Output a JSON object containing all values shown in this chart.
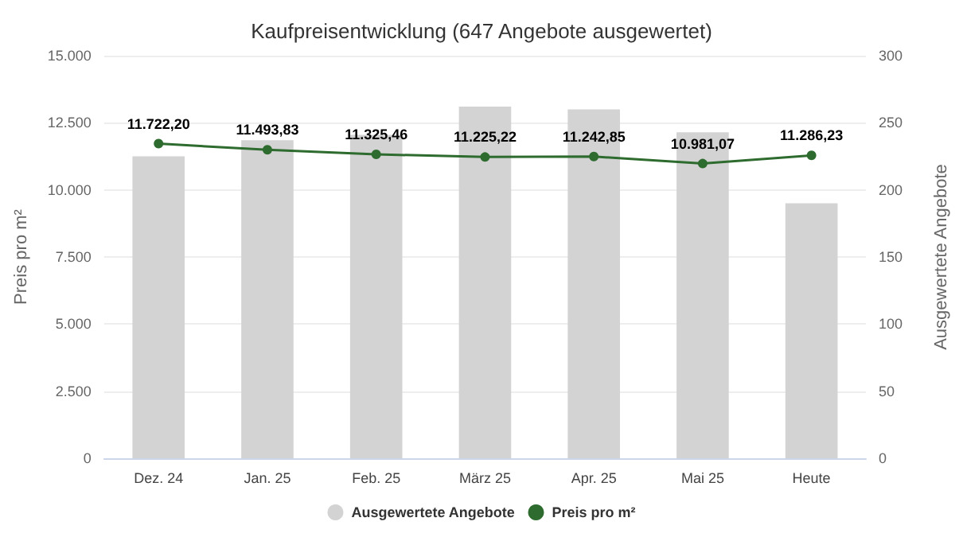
{
  "chart_data": {
    "type": "bar",
    "title": "Kaufpreisentwicklung (647 Angebote ausgewertet)",
    "ylabel": "Preis pro m²",
    "y2label": "Ausgewertete Angebote",
    "categories": [
      "Dez. 24",
      "Jan. 25",
      "Feb. 25",
      "März 25",
      "Apr. 25",
      "Mai 25",
      "Heute"
    ],
    "series": [
      {
        "name": "Ausgewertete Angebote",
        "axis": "y2",
        "color": "#d3d3d3",
        "values": [
          225,
          237,
          241,
          262,
          260,
          243,
          190
        ]
      },
      {
        "name": "Preis pro m²",
        "type": "line",
        "color": "#2e6b2e",
        "values": [
          11722.2,
          11493.83,
          11325.46,
          11225.22,
          11242.85,
          10981.07,
          11286.23
        ],
        "value_labels": [
          "11.722,20",
          "11.493,83",
          "11.325,46",
          "11.225,22",
          "11.242,85",
          "10.981,07",
          "11.286,23"
        ]
      }
    ],
    "ylim": [
      0,
      15000
    ],
    "yticks": [
      {
        "value": 0,
        "label": "0"
      },
      {
        "value": 2500,
        "label": "2.500"
      },
      {
        "value": 5000,
        "label": "5.000"
      },
      {
        "value": 7500,
        "label": "7.500"
      },
      {
        "value": 10000,
        "label": "10.000"
      },
      {
        "value": 12500,
        "label": "12.500"
      },
      {
        "value": 15000,
        "label": "15.000"
      }
    ],
    "y2lim": [
      0,
      300
    ],
    "y2ticks": [
      0,
      50,
      100,
      150,
      200,
      250,
      300
    ],
    "grid": "y",
    "legend": "bottom",
    "marker": "circle",
    "line_style": "solid"
  }
}
